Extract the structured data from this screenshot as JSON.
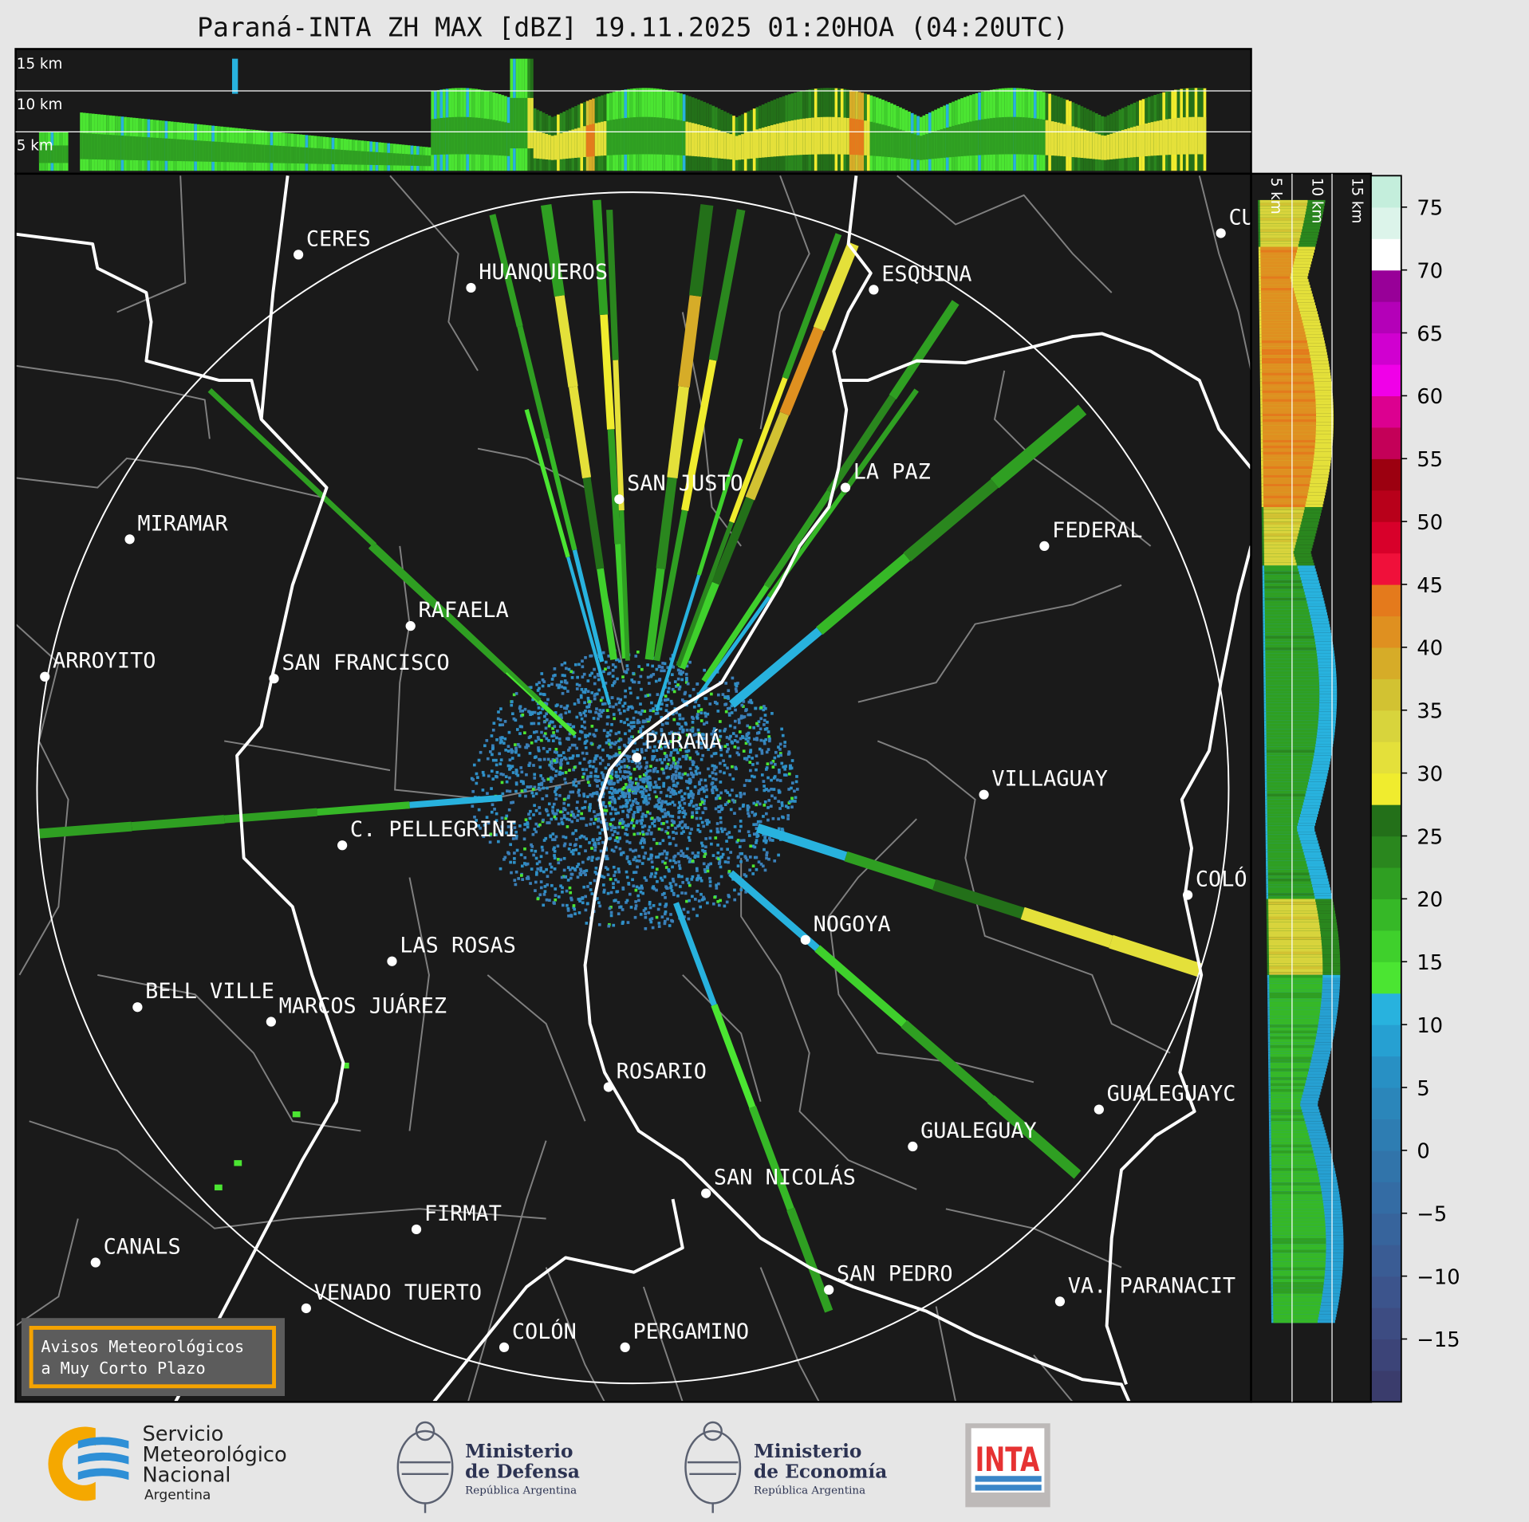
{
  "title": "Paraná-INTA ZH MAX [dBZ] 19.11.2025 01:20HOA (04:20UTC)",
  "top_panel": {
    "height_labels": [
      "15 km",
      "10 km",
      "5 km"
    ]
  },
  "side_panel": {
    "height_labels": [
      "5 km",
      "10 km",
      "15 km"
    ]
  },
  "colorbar": {
    "unit": "dBZ",
    "range": [
      -20,
      77.5
    ],
    "step": 2.5,
    "ticks": [
      "75",
      "70",
      "65",
      "60",
      "55",
      "50",
      "45",
      "40",
      "35",
      "30",
      "25",
      "20",
      "15",
      "10",
      "5",
      "0",
      "−5",
      "−10",
      "−15"
    ],
    "colors": [
      "#3a3c6c",
      "#3c4478",
      "#3d4c82",
      "#3c548c",
      "#3a5c94",
      "#37649c",
      "#346ca4",
      "#3174aa",
      "#2e7db2",
      "#2b86ba",
      "#2890c4",
      "#26a0d2",
      "#28b2de",
      "#4be532",
      "#3fd02c",
      "#36b827",
      "#2f9f22",
      "#2a871e",
      "#237019",
      "#f0ec2e",
      "#e4e03a",
      "#d8d43c",
      "#d2c232",
      "#d6ac28",
      "#df9020",
      "#e47a1c",
      "#f0103a",
      "#d8002a",
      "#b8001a",
      "#9c0010",
      "#c40058",
      "#dc0090",
      "#f000e8",
      "#d000d0",
      "#b400b8",
      "#980098",
      "#ffffff",
      "#dcf4ea",
      "#c4eedc"
    ],
    "top_colors": [
      "#b2e9d4",
      "#9fe3c9",
      "#8cdcbd",
      "#8adcbc"
    ]
  },
  "range_ring_km": 240,
  "cities": [
    {
      "name": "CERES"
    },
    {
      "name": "HUANQUEROS"
    },
    {
      "name": "ESQUINA"
    },
    {
      "name": "CU"
    },
    {
      "name": "SAN JUSTO"
    },
    {
      "name": "LA PAZ"
    },
    {
      "name": "MIRAMAR"
    },
    {
      "name": "FEDERAL"
    },
    {
      "name": "RAFAELA"
    },
    {
      "name": "ARROYITO"
    },
    {
      "name": "SAN FRANCISCO"
    },
    {
      "name": "PARANÁ"
    },
    {
      "name": "VILLAGUAY"
    },
    {
      "name": "C. PELLEGRINI"
    },
    {
      "name": "COLÓ"
    },
    {
      "name": "NOGOYA"
    },
    {
      "name": "LAS ROSAS"
    },
    {
      "name": "BELL VILLE"
    },
    {
      "name": "MARCOS JUÁREZ"
    },
    {
      "name": "ROSARIO"
    },
    {
      "name": "GUALEGUAYC"
    },
    {
      "name": "GUALEGUAY"
    },
    {
      "name": "SAN NICOLÁS"
    },
    {
      "name": "FIRMAT"
    },
    {
      "name": "CANALS"
    },
    {
      "name": "SAN PEDRO"
    },
    {
      "name": "VA. PARANACIT"
    },
    {
      "name": "VENADO TUERTO"
    },
    {
      "name": "COLÓN"
    },
    {
      "name": "PERGAMINO"
    }
  ],
  "notice": {
    "line1": "Avisos Meteorológicos",
    "line2": "a Muy Corto Plazo",
    "border_color": "#f5a300"
  },
  "logos": {
    "smn": {
      "line1": "Servicio",
      "line2": "Meteorológico",
      "line3": "Nacional",
      "line4": "Argentina"
    },
    "defensa": {
      "line1": "Ministerio",
      "line2": "de Defensa",
      "line3": "República Argentina"
    },
    "economia": {
      "line1": "Ministerio",
      "line2": "de Economía",
      "line3": "República Argentina"
    },
    "inta": {
      "text": "INTA"
    }
  }
}
